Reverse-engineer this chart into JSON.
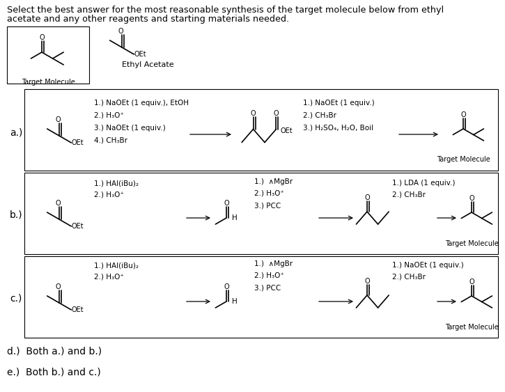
{
  "title_line1": "Select the best answer for the most reasonable synthesis of the target molecule below from ethyl",
  "title_line2": "acetate and any other reagents and starting materials needed.",
  "bg_color": "#ffffff",
  "text_color": "#000000",
  "option_d": "d.)  Both a.) and b.)",
  "option_e": "e.)  Both b.) and c.)",
  "row_a_steps_left": [
    "1.) NaOEt (1 equiv.), EtOH",
    "2.) H₃O⁺",
    "3.) NaOEt (1 equiv.)",
    "4.) CH₃Br"
  ],
  "row_a_steps_right": [
    "1.) NaOEt (1 equiv.)",
    "2.) CH₃Br",
    "3.) H₂SO₄, H₂O, Boil"
  ],
  "row_b_steps_left": [
    "1.) HAl(iBu)₂",
    "2.) H₃O⁺"
  ],
  "row_b_steps_mid": [
    "1.)  ∧MgBr",
    "2.) H₃O⁺",
    "3.) PCC"
  ],
  "row_b_steps_right": [
    "1.) LDA (1 equiv.)",
    "2.) CH₃Br"
  ],
  "row_c_steps_left": [
    "1.) HAl(iBu)₂",
    "2.) H₃O⁺"
  ],
  "row_c_steps_mid": [
    "1.)  ∧MgBr",
    "2.) H₃O⁺",
    "3.) PCC"
  ],
  "row_c_steps_right": [
    "1.) NaOEt (1 equiv.)",
    "2.) CH₃Br"
  ]
}
